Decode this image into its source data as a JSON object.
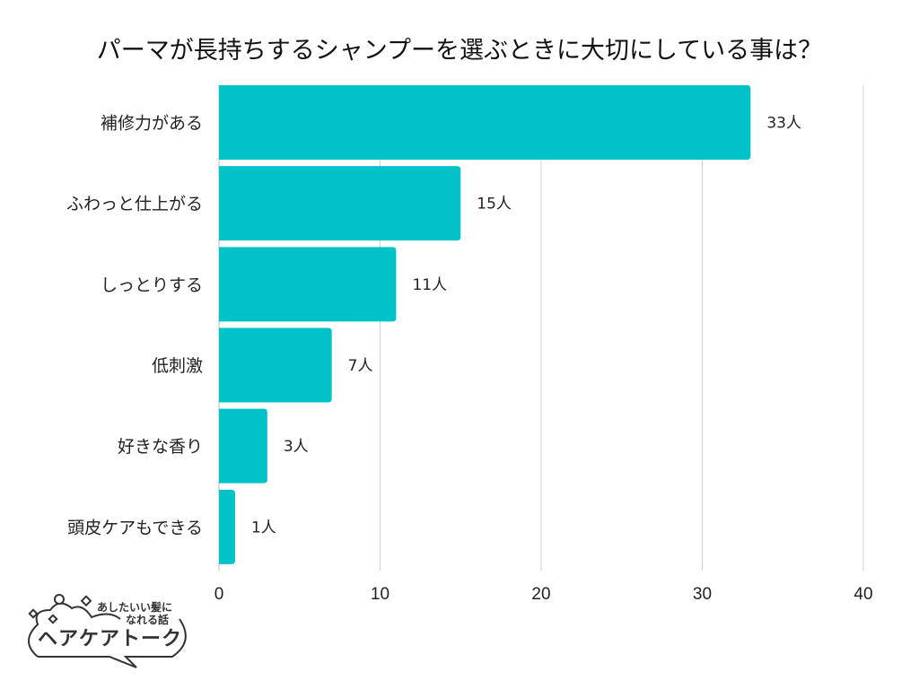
{
  "chart_data": {
    "type": "bar",
    "orientation": "horizontal",
    "title": "パーマが長持ちするシャンプーを選ぶときに大切にしている事は？",
    "categories": [
      "補修力がある",
      "ふわっと仕上がる",
      "しっとりする",
      "低刺激",
      "好きな香り",
      "頭皮ケアもできる"
    ],
    "values": [
      33,
      15,
      11,
      7,
      3,
      1
    ],
    "data_labels": [
      "33人",
      "15人",
      "11人",
      "7人",
      "3人",
      "1人"
    ],
    "xlim": [
      0,
      40
    ],
    "xticks": [
      "0",
      "10",
      "20",
      "30",
      "40"
    ],
    "grid": true,
    "bar_color": "#00C3CA"
  },
  "logo": {
    "tagline1": "あしたいい髪に",
    "tagline2": "なれる話",
    "name": "ヘアケアトーク"
  }
}
